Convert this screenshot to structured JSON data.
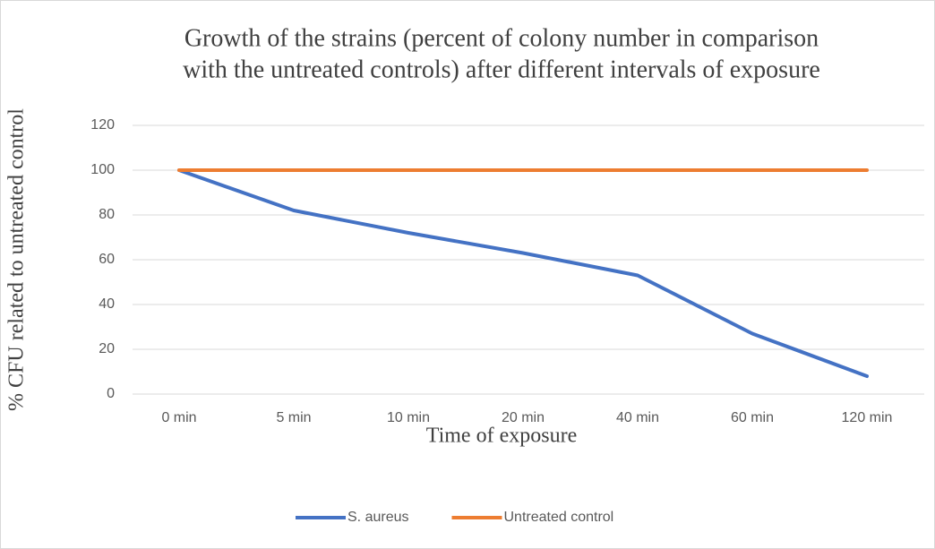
{
  "chart_data": {
    "type": "line",
    "title": [
      "Growth of the strains (percent of colony number in comparison",
      "with the untreated controls) after different intervals of exposure"
    ],
    "x_label": "Time of exposure",
    "y_label": "% CFU related to untreated control",
    "categories": [
      "0 min",
      "5 min",
      "10 min",
      "20 min",
      "40 min",
      "60 min",
      "120 min"
    ],
    "series": [
      {
        "name": "S. aureus",
        "color": "#4472c4",
        "values": [
          100,
          82,
          72,
          63,
          53,
          27,
          8
        ]
      },
      {
        "name": "Untreated control",
        "color": "#ed7d31",
        "values": [
          100,
          100,
          100,
          100,
          100,
          100,
          100
        ]
      }
    ],
    "ylim": [
      0,
      120
    ],
    "yticks": [
      0,
      20,
      40,
      60,
      80,
      100,
      120
    ],
    "grid": true,
    "legend": "bottom"
  }
}
